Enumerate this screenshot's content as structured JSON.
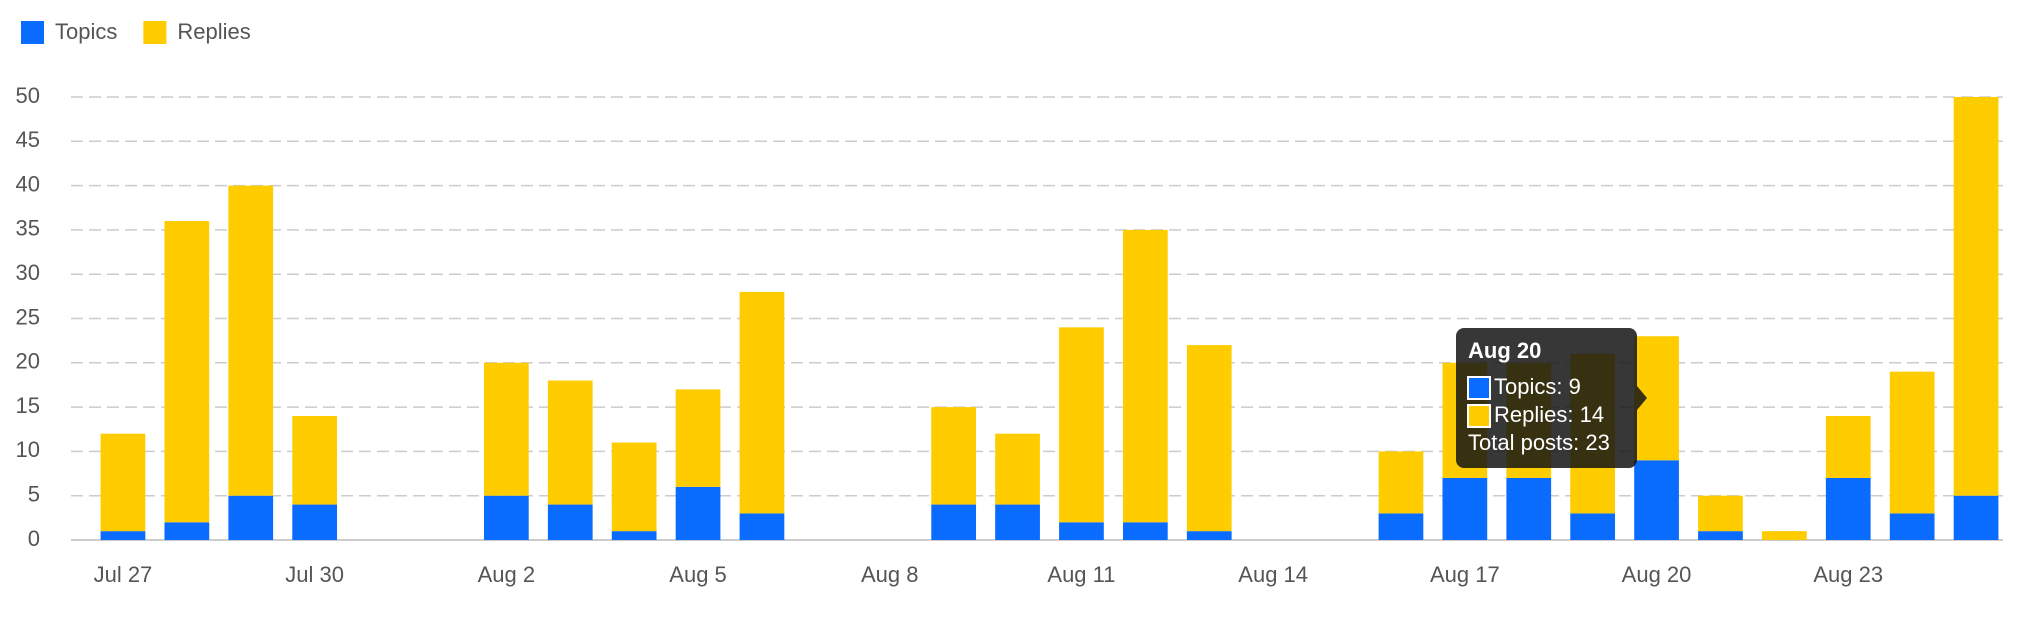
{
  "chart_data": {
    "type": "stacked-bar",
    "categories": [
      "Jul 27",
      null,
      null,
      "Jul 30",
      null,
      null,
      "Aug 2",
      null,
      null,
      "Aug 5",
      null,
      null,
      "Aug 8",
      null,
      null,
      "Aug 11",
      null,
      null,
      "Aug 14",
      null,
      null,
      "Aug 17",
      null,
      null,
      "Aug 20",
      null,
      null,
      "Aug 23",
      null,
      null
    ],
    "series": [
      {
        "name": "Topics",
        "color": "#0a6cff",
        "values": [
          1,
          2,
          5,
          4,
          0,
          0,
          5,
          4,
          1,
          6,
          3,
          0,
          0,
          4,
          4,
          2,
          2,
          1,
          0,
          0,
          3,
          7,
          7,
          3,
          9,
          1,
          0,
          7,
          3,
          5
        ]
      },
      {
        "name": "Replies",
        "color": "#ffcc00",
        "values": [
          11,
          34,
          35,
          10,
          0,
          0,
          15,
          14,
          10,
          11,
          25,
          0,
          0,
          11,
          8,
          22,
          33,
          21,
          0,
          0,
          7,
          13,
          13,
          18,
          14,
          4,
          1,
          7,
          16,
          45
        ]
      }
    ],
    "ylim": [
      0,
      50
    ],
    "yticks": [
      0,
      5,
      10,
      15,
      20,
      25,
      30,
      35,
      40,
      45,
      50
    ],
    "grid": true,
    "legend": "top-left",
    "tooltip": {
      "title": "Aug 20",
      "lines": [
        "Topics: 9",
        "Replies: 14",
        "Total posts: 23"
      ]
    }
  }
}
